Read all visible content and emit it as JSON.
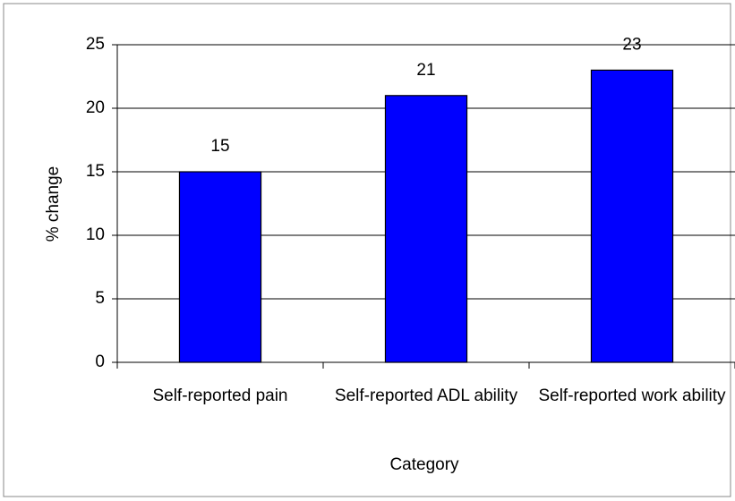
{
  "chart_data": {
    "type": "bar",
    "categories": [
      "Self-reported pain",
      "Self-reported ADL ability",
      "Self-reported work ability"
    ],
    "values": [
      15,
      21,
      23
    ],
    "color": "#0000ff",
    "xlabel": "Category",
    "ylabel": "% change",
    "ylim": [
      0,
      25
    ],
    "yticks": [
      0,
      5,
      10,
      15,
      20,
      25
    ],
    "grid": true
  }
}
